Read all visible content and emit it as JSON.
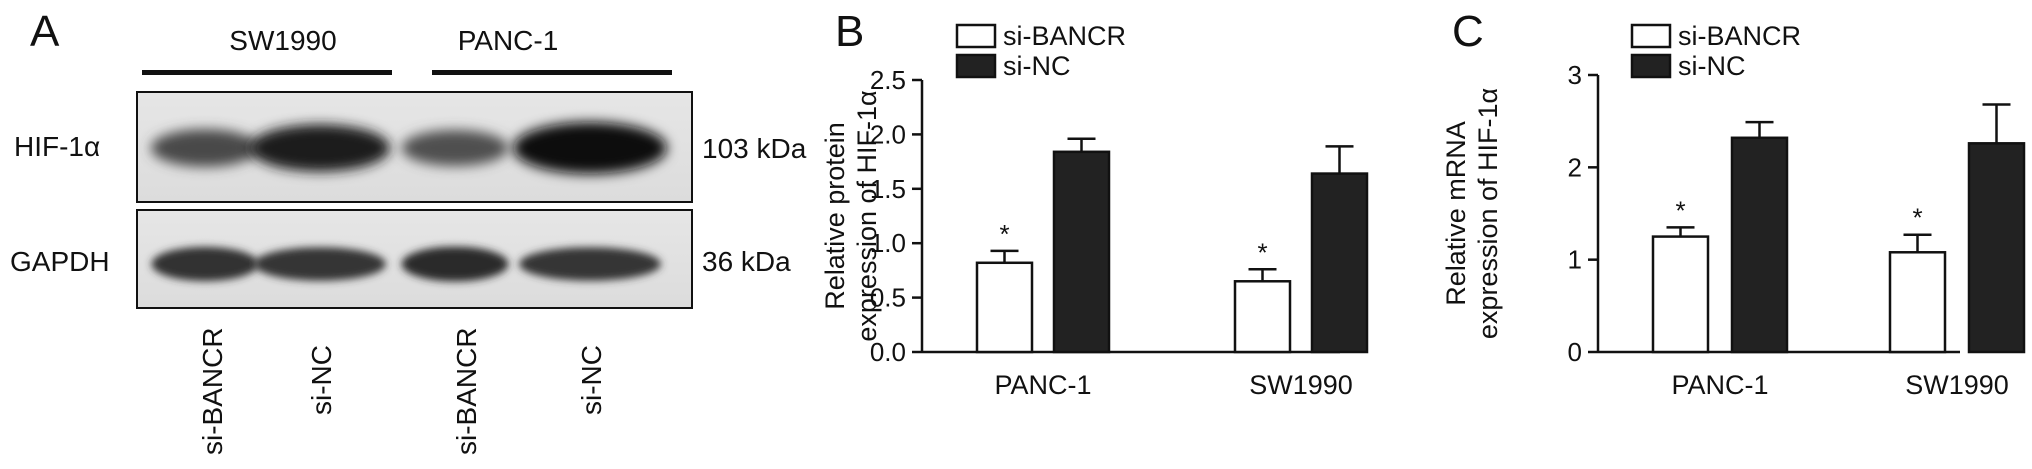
{
  "panelA": {
    "letter": "A",
    "groups": [
      "SW1990",
      "PANC-1"
    ],
    "rows": [
      {
        "label": "HIF-1α",
        "size": "103 kDa"
      },
      {
        "label": "GAPDH",
        "size": "36 kDa"
      }
    ],
    "lanes": [
      "si-BANCR",
      "si-NC",
      "si-BANCR",
      "si-NC"
    ],
    "band_intensity": {
      "HIF-1α": [
        0.55,
        0.85,
        0.5,
        1.0
      ],
      "GAPDH": [
        0.85,
        0.8,
        0.9,
        0.8
      ]
    }
  },
  "panelB": {
    "letter": "B",
    "chart_data": {
      "type": "bar",
      "categories": [
        "PANC-1",
        "SW1990"
      ],
      "series": [
        {
          "name": "si-BANCR",
          "values": [
            0.82,
            0.65
          ],
          "errors": [
            0.11,
            0.11
          ],
          "color": "#ffffff",
          "significance": [
            "*",
            "*"
          ]
        },
        {
          "name": "si-NC",
          "values": [
            1.84,
            1.64
          ],
          "errors": [
            0.12,
            0.25
          ],
          "color": "#222222",
          "significance": [
            "",
            ""
          ]
        }
      ],
      "ylabel_lines": [
        "Relative protein",
        "expression of HIF-1α"
      ],
      "ylim": [
        0,
        2.5
      ],
      "yticks": [
        "0.0",
        "0.5",
        "1.0",
        "1.5",
        "2.0",
        "2.5"
      ],
      "ytick_values": [
        0,
        0.5,
        1.0,
        1.5,
        2.0,
        2.5
      ],
      "legend": "top-left"
    }
  },
  "panelC": {
    "letter": "C",
    "chart_data": {
      "type": "bar",
      "categories": [
        "PANC-1",
        "SW1990"
      ],
      "series": [
        {
          "name": "si-BANCR",
          "values": [
            1.25,
            1.08
          ],
          "errors": [
            0.1,
            0.19
          ],
          "color": "#ffffff",
          "significance": [
            "*",
            "*"
          ]
        },
        {
          "name": "si-NC",
          "values": [
            2.32,
            2.26
          ],
          "errors": [
            0.17,
            0.42
          ],
          "color": "#222222",
          "significance": [
            "",
            ""
          ]
        }
      ],
      "ylabel_lines": [
        "Relative mRNA",
        "expression of HIF-1α"
      ],
      "ylim": [
        0,
        3
      ],
      "yticks": [
        "0",
        "1",
        "2",
        "3"
      ],
      "ytick_values": [
        0,
        1,
        2,
        3
      ],
      "legend": "top-left"
    }
  }
}
